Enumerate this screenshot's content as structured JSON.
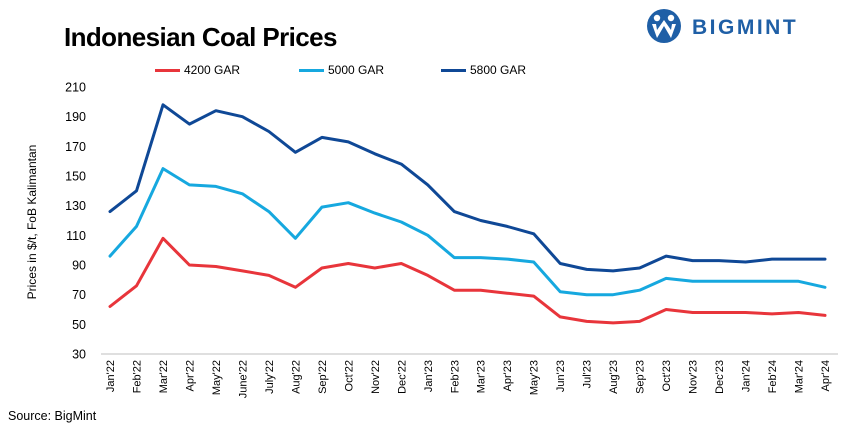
{
  "header": {
    "title": "Indonesian Coal Prices",
    "logo_text": "BIGMINT"
  },
  "footer": {
    "source": "Source: BigMint"
  },
  "colors": {
    "series_4200": "#e8353b",
    "series_5000": "#16a8df",
    "series_5800": "#0f4896",
    "logo": "#1f5fa6"
  },
  "chart_data": {
    "type": "line",
    "ylabel": "Prices in $/t, FoB Kalimantan",
    "xlabel": "",
    "ylim": [
      30,
      210
    ],
    "yticks": [
      30,
      50,
      70,
      90,
      110,
      130,
      150,
      170,
      190,
      210
    ],
    "grid": false,
    "legend_position": "top",
    "categories": [
      "Jan'22",
      "Feb'22",
      "Mar'22",
      "Apr'22",
      "May'22",
      "June'22",
      "July'22",
      "Aug'22",
      "Sep'22",
      "Oct'22",
      "Nov'22",
      "Dec'22",
      "Jan'23",
      "Feb'23",
      "Mar'23",
      "Apr'23",
      "May'23",
      "Jun'23",
      "Jul'23",
      "Aug'23",
      "Sep'23",
      "Oct'23",
      "Nov'23",
      "Dec'23",
      "Jan'24",
      "Feb'24",
      "Mar'24",
      "Apr'24"
    ],
    "series": [
      {
        "name": "4200 GAR",
        "color": "#e8353b",
        "values": [
          62,
          76,
          108,
          90,
          89,
          86,
          83,
          75,
          88,
          91,
          88,
          91,
          83,
          73,
          73,
          71,
          69,
          55,
          52,
          51,
          52,
          60,
          58,
          58,
          58,
          57,
          58,
          56
        ]
      },
      {
        "name": "5000 GAR",
        "color": "#16a8df",
        "values": [
          96,
          116,
          155,
          144,
          143,
          138,
          126,
          108,
          129,
          132,
          125,
          119,
          110,
          95,
          95,
          94,
          92,
          72,
          70,
          70,
          73,
          81,
          79,
          79,
          79,
          79,
          79,
          75
        ]
      },
      {
        "name": "5800 GAR",
        "color": "#0f4896",
        "values": [
          126,
          140,
          198,
          185,
          194,
          190,
          180,
          166,
          176,
          173,
          165,
          158,
          144,
          126,
          120,
          116,
          111,
          91,
          87,
          86,
          88,
          96,
          93,
          93,
          92,
          94,
          94,
          94
        ]
      }
    ]
  }
}
